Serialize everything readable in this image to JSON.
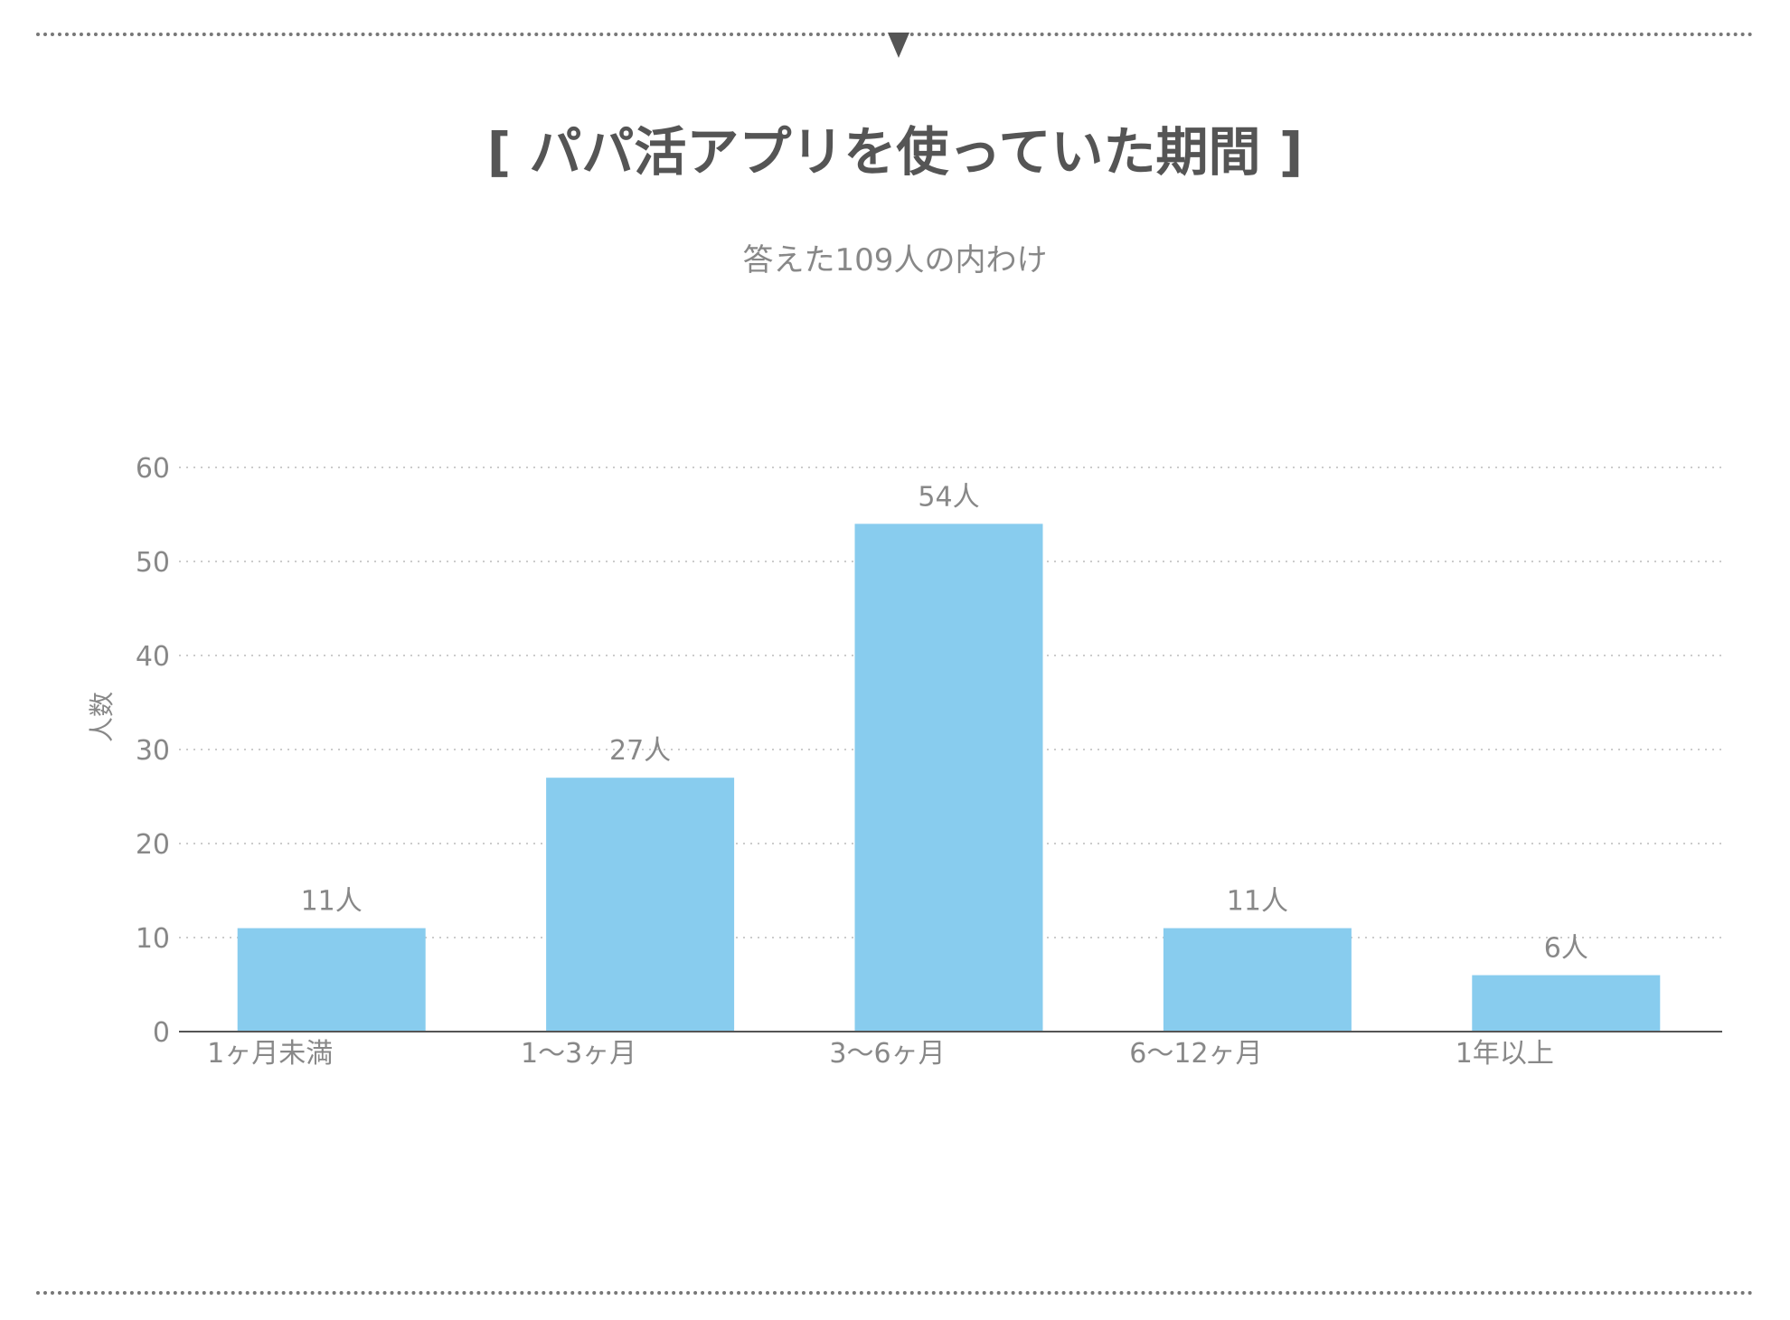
{
  "chart_data": {
    "type": "bar",
    "title": "[ パパ活アプリを使っていた期間 ]",
    "subtitle": "答えた109人の内わけ",
    "xlabel": "",
    "ylabel": "人数",
    "categories": [
      "1ヶ月未満",
      "1〜3ヶ月",
      "3〜6ヶ月",
      "6〜12ヶ月",
      "1年以上"
    ],
    "values": [
      11,
      27,
      54,
      11,
      6
    ],
    "data_labels": [
      "11人",
      "27人",
      "54人",
      "11人",
      "6人"
    ],
    "ylim": [
      0,
      60
    ],
    "yticks": [
      0,
      10,
      20,
      30,
      40,
      50,
      60
    ],
    "grid": true,
    "bar_color": "#88ccee",
    "grid_color": "#cccccc",
    "axis_color": "#555555",
    "text_color": "#888888"
  }
}
